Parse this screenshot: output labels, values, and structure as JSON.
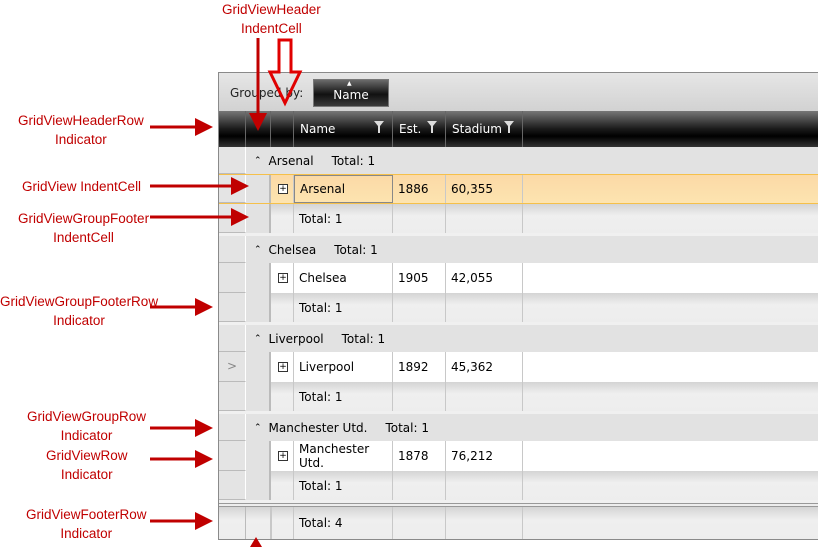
{
  "annotations": {
    "header_indent": "GridViewHeader\nIndentCell",
    "header_indicator": "GridViewHeaderRow\nIndicator",
    "indent_cell": "GridView IndentCell",
    "group_footer_indent": "GridViewGroupFooter\nIndentCell",
    "group_footer_indicator": "GridViewGroupFooterRow\nIndicator",
    "group_row_indicator": "GridViewGroupRow\nIndicator",
    "row_indicator": "GridViewRow\nIndicator",
    "footer_indicator": "GridViewFooterRow\nIndicator"
  },
  "grid": {
    "grouped_by_label": "Grouped by:",
    "group_button": "Name",
    "columns": [
      "Name",
      "Est.",
      "Stadium"
    ],
    "groups": [
      {
        "name": "Arsenal",
        "total": "Total:  1",
        "row": [
          "Arsenal",
          "1886",
          "60,355"
        ],
        "footer": "Total: 1",
        "selected": true
      },
      {
        "name": "Chelsea",
        "total": "Total:  1",
        "row": [
          "Chelsea",
          "1905",
          "42,055"
        ],
        "footer": "Total: 1"
      },
      {
        "name": "Liverpool",
        "total": "Total:  1",
        "row": [
          "Liverpool",
          "1892",
          "45,362"
        ],
        "footer": "Total: 1",
        "current": true
      },
      {
        "name": "Manchester Utd.",
        "total": "Total:  1",
        "row": [
          "Manchester Utd.",
          "1878",
          "76,212"
        ],
        "footer": "Total: 1"
      }
    ],
    "footer_total": "Total: 4",
    "current_indicator": ">"
  },
  "colors": {
    "annotation": "#c00000",
    "selected_row": "#fde0ac"
  }
}
